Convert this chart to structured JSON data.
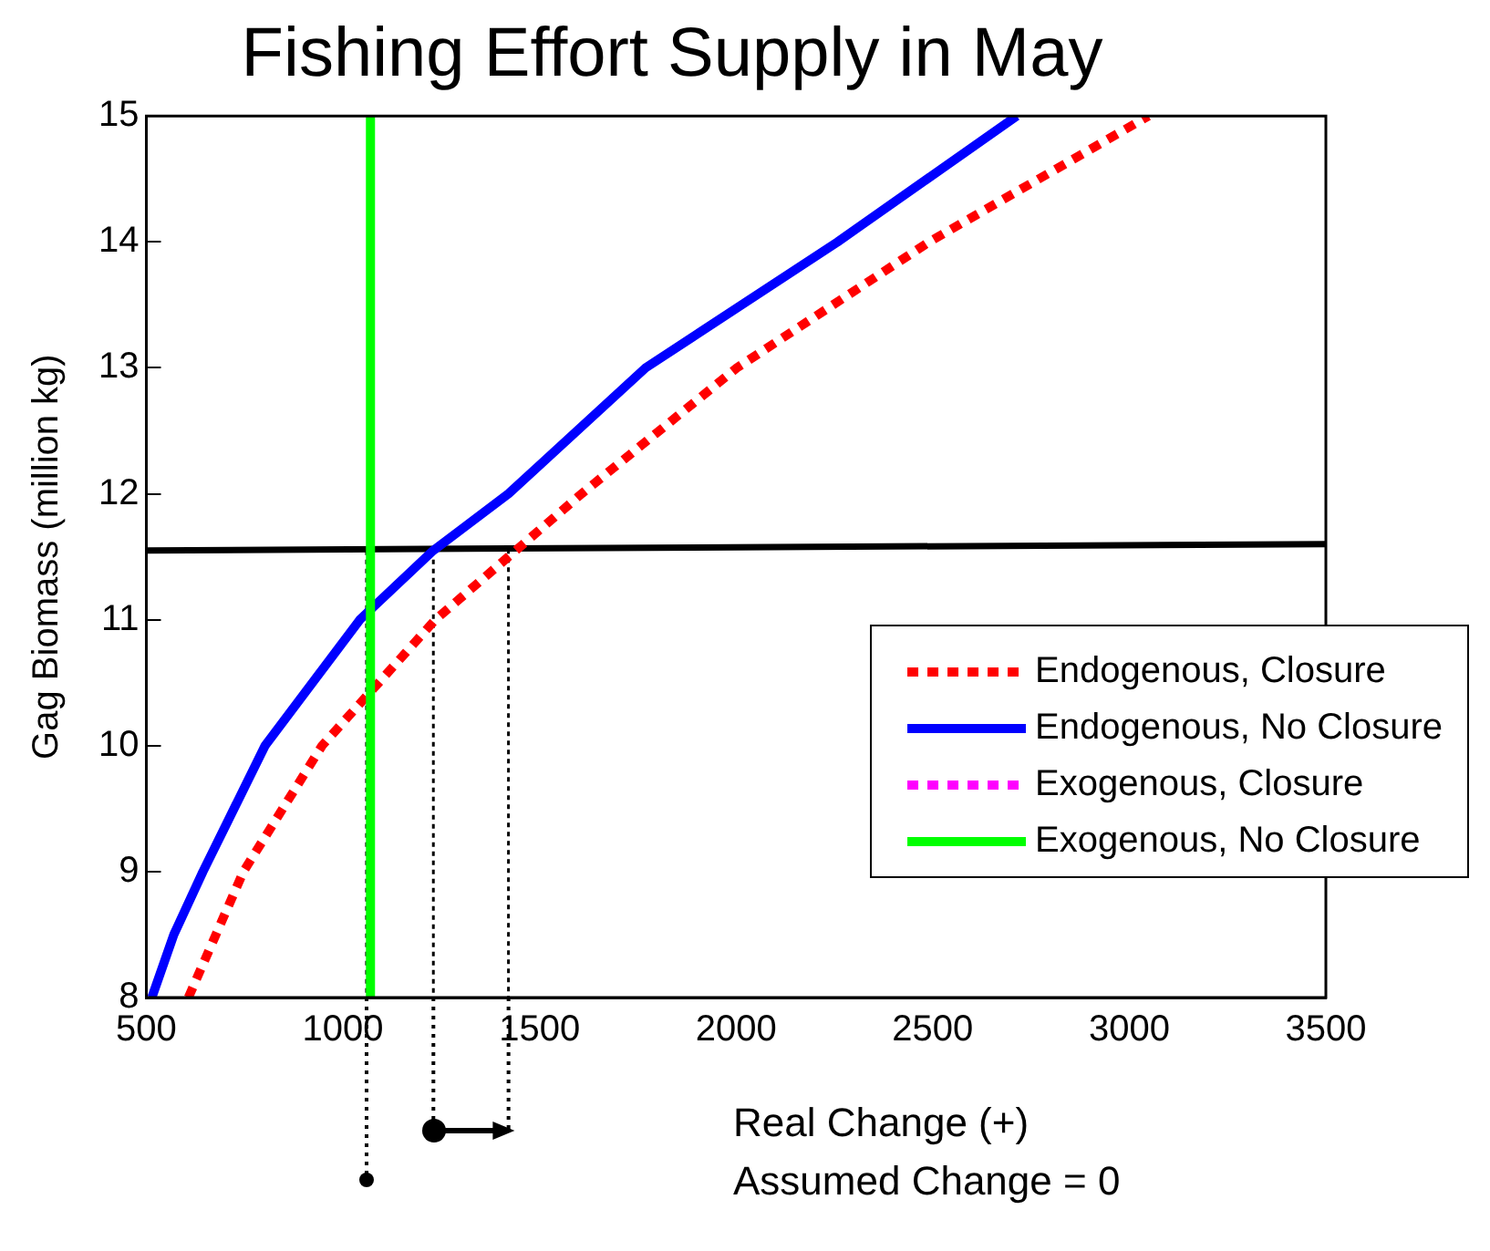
{
  "chart_data": {
    "type": "line",
    "title": "Fishing Effort Supply in May",
    "ylabel": "Gag Biomass (million kg)",
    "xlim": [
      500,
      3500
    ],
    "xticks": [
      500,
      1000,
      1500,
      2000,
      2500,
      3000,
      3500
    ],
    "ylim": [
      8,
      15
    ],
    "yticks": [
      8,
      9,
      10,
      11,
      12,
      13,
      14,
      15
    ],
    "grid": false,
    "legend": "bottom right",
    "marker": "none",
    "annotations": [
      "Real Change (+)",
      "Assumed Change = 0"
    ],
    "series": [
      {
        "name": "Endogenous, Closure",
        "color": "#ff0000",
        "line_style": "dotted",
        "x": [
          607,
          677,
          747,
          947,
          1235,
          1421,
          1607,
          2002,
          2491,
          3049
        ],
        "values": [
          8,
          8.5,
          9,
          10,
          11,
          11.5,
          12,
          13,
          14,
          15
        ]
      },
      {
        "name": "Endogenous, No Closure",
        "color": "#0000ff",
        "line_style": "solid",
        "x": [
          514,
          570,
          644,
          802,
          1043,
          1230,
          1421,
          1770,
          2258,
          2714
        ],
        "values": [
          8,
          8.5,
          9,
          10,
          11,
          11.55,
          12,
          13,
          14,
          15
        ]
      },
      {
        "name": "Exogenous, Closure",
        "color": "#ff00ff",
        "line_style": "dotted"
      },
      {
        "name": "Exogenous, No Closure",
        "color": "#00ff00",
        "line_style": "solid",
        "x": [
          1070,
          1070
        ],
        "values": [
          8,
          15
        ]
      },
      {
        "color": "#000000",
        "line_style": "solid",
        "x": [
          500,
          3500
        ],
        "values": [
          11.55,
          11.6
        ]
      },
      {
        "color": "#000000",
        "line_style": "dotted",
        "x": [
          1060,
          1060
        ],
        "values": [
          11.55,
          8
        ]
      },
      {
        "color": "#000000",
        "line_style": "dotted",
        "x": [
          1230,
          1230
        ],
        "values": [
          11.55,
          8
        ]
      },
      {
        "color": "#000000",
        "line_style": "dotted",
        "x": [
          1421,
          1421
        ],
        "values": [
          11.56,
          8
        ]
      }
    ]
  }
}
